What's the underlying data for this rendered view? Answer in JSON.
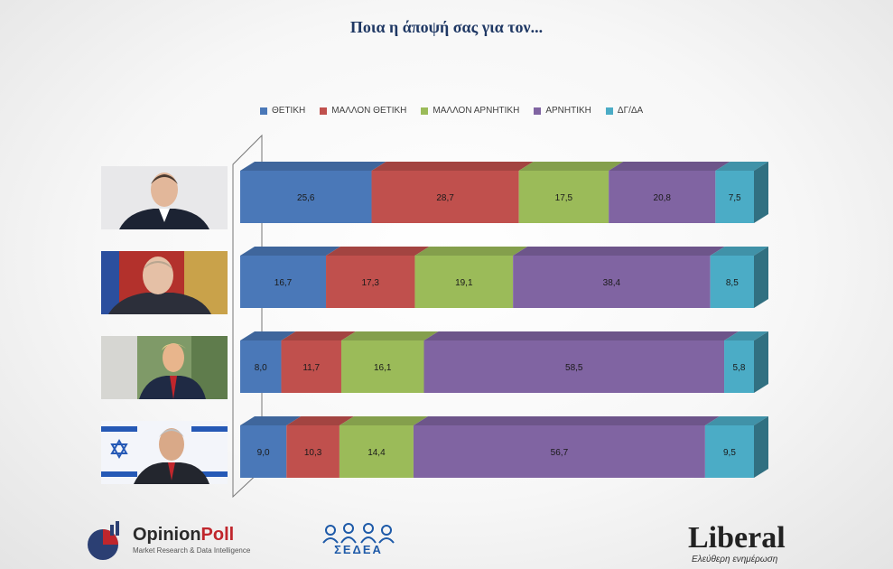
{
  "title": "Ποια η άποψή σας για τον...",
  "colors": [
    "#4a78b8",
    "#c0504d",
    "#9bbb59",
    "#8064a2",
    "#4bacc6"
  ],
  "chart_data": {
    "type": "bar",
    "orientation": "horizontal",
    "stacked": true,
    "percent": true,
    "categories": [
      "photo-1",
      "photo-2",
      "photo-3",
      "photo-4"
    ],
    "series": [
      {
        "name": "ΘΕΤΙΚΗ",
        "values": [
          25.6,
          16.7,
          8.0,
          9.0
        ],
        "labels": [
          "25,6",
          "16,7",
          "8,0",
          "9,0"
        ]
      },
      {
        "name": "ΜΑΛΛΟΝ ΘΕΤΙΚΗ",
        "values": [
          28.7,
          17.3,
          11.7,
          10.3
        ],
        "labels": [
          "28,7",
          "17,3",
          "11,7",
          "10,3"
        ]
      },
      {
        "name": "ΜΑΛΛΟΝ ΑΡΝΗΤΙΚΗ",
        "values": [
          17.5,
          19.1,
          16.1,
          14.4
        ],
        "labels": [
          "17,5",
          "19,1",
          "16,1",
          "14,4"
        ]
      },
      {
        "name": "ΑΡΝΗΤΙΚΗ",
        "values": [
          20.8,
          38.4,
          58.5,
          56.7
        ],
        "labels": [
          "20,8",
          "38,4",
          "58,5",
          "56,7"
        ]
      },
      {
        "name": "ΔΓ/ΔΑ",
        "values": [
          7.5,
          8.5,
          5.8,
          9.5
        ],
        "labels": [
          "7,5",
          "8,5",
          "5,8",
          "9,5"
        ]
      }
    ],
    "legend_position": "top",
    "grid": false
  },
  "logos": {
    "opinionpoll": {
      "name_part1": "Opinion",
      "name_part2": "Poll",
      "tagline": "Market Research & Data Intelligence"
    },
    "sedea": {
      "name": "ΣΕΔΕΑ"
    },
    "liberal": {
      "name": "Liberal",
      "tagline": "Ελεύθερη ενημέρωση"
    }
  }
}
